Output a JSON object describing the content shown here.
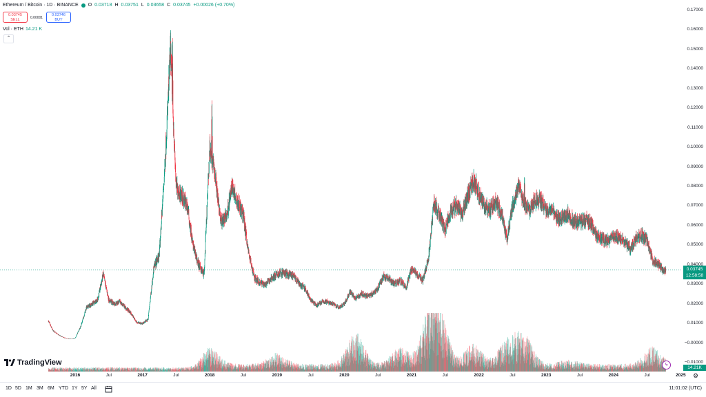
{
  "legend": {
    "symbol": "Ethereum / Bitcoin · 1D · BINANCE",
    "open_label": "O",
    "open": "0.03718",
    "high_label": "H",
    "high": "0.03751",
    "low_label": "L",
    "low": "0.03658",
    "close_label": "C",
    "close": "0.03745",
    "change": "+0.00026 (+0.70%)"
  },
  "trade": {
    "sell_price": "0.03745",
    "sell_label": "SELL",
    "spread": "0.00001",
    "buy_price": "0.03746",
    "buy_label": "BUY"
  },
  "volume_legend": {
    "label": "Vol · ETH",
    "value": "14.21 K"
  },
  "price_axis": [
    "0.17000",
    "0.16000",
    "0.15000",
    "0.14000",
    "0.13000",
    "0.12000",
    "0.11000",
    "0.10000",
    "0.09000",
    "0.08000",
    "0.07000",
    "0.06000",
    "0.05000",
    "0.04000",
    "0.03000",
    "0.02000",
    "0.01000",
    "−0.00000",
    "−0.01000"
  ],
  "price_badge": {
    "price": "0.03745",
    "countdown": "12:58:58"
  },
  "volume_badge": "14.21K",
  "time_axis": [
    {
      "label": "2016",
      "year": true
    },
    {
      "label": "Jul",
      "year": false
    },
    {
      "label": "2017",
      "year": true
    },
    {
      "label": "Jul",
      "year": false
    },
    {
      "label": "2018",
      "year": true
    },
    {
      "label": "Jul",
      "year": false
    },
    {
      "label": "2019",
      "year": true
    },
    {
      "label": "Jul",
      "year": false
    },
    {
      "label": "2020",
      "year": true
    },
    {
      "label": "Jul",
      "year": false
    },
    {
      "label": "2021",
      "year": true
    },
    {
      "label": "Jul",
      "year": false
    },
    {
      "label": "2022",
      "year": true
    },
    {
      "label": "Jul",
      "year": false
    },
    {
      "label": "2023",
      "year": true
    },
    {
      "label": "Jul",
      "year": false
    },
    {
      "label": "2024",
      "year": true
    },
    {
      "label": "Jul",
      "year": false
    },
    {
      "label": "2025",
      "year": true
    }
  ],
  "timeframes": [
    "1D",
    "5D",
    "1M",
    "3M",
    "6M",
    "YTD",
    "1Y",
    "5Y",
    "All"
  ],
  "time_readout": "11:01:02 (UTC)",
  "logo_text": "TradingView",
  "icons": {
    "calendar": "calendar-icon",
    "gear": "gear-icon",
    "bolt": "bolt-icon",
    "collapse": "chevron-up-icon"
  },
  "colors": {
    "up": "#089981",
    "down": "#f23645",
    "accent": "#2962ff"
  },
  "chart_data": {
    "type": "candlestick",
    "x_start": "2015-08",
    "x_end": "2024-10",
    "ylim": [
      -0.01,
      0.17
    ],
    "close_path": [
      [
        "2015-08-08",
        0.0112
      ],
      [
        "2015-09",
        0.0065
      ],
      [
        "2015-10",
        0.0042
      ],
      [
        "2015-11",
        0.0027
      ],
      [
        "2015-12",
        0.0021
      ],
      [
        "2016-01",
        0.0025
      ],
      [
        "2016-02",
        0.0085
      ],
      [
        "2016-03",
        0.018
      ],
      [
        "2016-04",
        0.02
      ],
      [
        "2016-05",
        0.022
      ],
      [
        "2016-06",
        0.035
      ],
      [
        "2016-07",
        0.022
      ],
      [
        "2016-08",
        0.02
      ],
      [
        "2016-09",
        0.021
      ],
      [
        "2016-10",
        0.018
      ],
      [
        "2016-11",
        0.015
      ],
      [
        "2016-12",
        0.0105
      ],
      [
        "2017-01",
        0.01
      ],
      [
        "2017-02",
        0.012
      ],
      [
        "2017-03",
        0.038
      ],
      [
        "2017-04",
        0.045
      ],
      [
        "2017-05",
        0.09
      ],
      [
        "2017-06",
        0.15
      ],
      [
        "2017-07",
        0.08
      ],
      [
        "2017-08",
        0.075
      ],
      [
        "2017-09",
        0.07
      ],
      [
        "2017-10",
        0.05
      ],
      [
        "2017-11",
        0.04
      ],
      [
        "2017-12",
        0.035
      ],
      [
        "2018-01",
        0.1
      ],
      [
        "2018-02",
        0.085
      ],
      [
        "2018-03",
        0.062
      ],
      [
        "2018-04",
        0.065
      ],
      [
        "2018-05",
        0.08
      ],
      [
        "2018-06",
        0.072
      ],
      [
        "2018-07",
        0.065
      ],
      [
        "2018-08",
        0.045
      ],
      [
        "2018-09",
        0.033
      ],
      [
        "2018-10",
        0.031
      ],
      [
        "2018-11",
        0.03
      ],
      [
        "2018-12",
        0.033
      ],
      [
        "2019-01",
        0.035
      ],
      [
        "2019-02",
        0.036
      ],
      [
        "2019-03",
        0.035
      ],
      [
        "2019-04",
        0.034
      ],
      [
        "2019-05",
        0.03
      ],
      [
        "2019-06",
        0.028
      ],
      [
        "2019-07",
        0.022
      ],
      [
        "2019-08",
        0.019
      ],
      [
        "2019-09",
        0.021
      ],
      [
        "2019-10",
        0.021
      ],
      [
        "2019-11",
        0.02
      ],
      [
        "2019-12",
        0.018
      ],
      [
        "2020-01",
        0.02
      ],
      [
        "2020-02",
        0.026
      ],
      [
        "2020-03",
        0.023
      ],
      [
        "2020-04",
        0.025
      ],
      [
        "2020-05",
        0.024
      ],
      [
        "2020-06",
        0.025
      ],
      [
        "2020-07",
        0.028
      ],
      [
        "2020-08",
        0.034
      ],
      [
        "2020-09",
        0.033
      ],
      [
        "2020-10",
        0.03
      ],
      [
        "2020-11",
        0.032
      ],
      [
        "2020-12",
        0.028
      ],
      [
        "2021-01",
        0.038
      ],
      [
        "2021-02",
        0.035
      ],
      [
        "2021-03",
        0.032
      ],
      [
        "2021-04",
        0.043
      ],
      [
        "2021-05",
        0.072
      ],
      [
        "2021-06",
        0.065
      ],
      [
        "2021-07",
        0.058
      ],
      [
        "2021-08",
        0.068
      ],
      [
        "2021-09",
        0.07
      ],
      [
        "2021-10",
        0.066
      ],
      [
        "2021-11",
        0.075
      ],
      [
        "2021-12",
        0.083
      ],
      [
        "2022-01",
        0.076
      ],
      [
        "2022-02",
        0.07
      ],
      [
        "2022-03",
        0.068
      ],
      [
        "2022-04",
        0.072
      ],
      [
        "2022-05",
        0.066
      ],
      [
        "2022-06",
        0.053
      ],
      [
        "2022-07",
        0.07
      ],
      [
        "2022-08",
        0.08
      ],
      [
        "2022-09",
        0.072
      ],
      [
        "2022-10",
        0.068
      ],
      [
        "2022-11",
        0.073
      ],
      [
        "2022-12",
        0.073
      ],
      [
        "2023-01",
        0.068
      ],
      [
        "2023-02",
        0.068
      ],
      [
        "2023-03",
        0.064
      ],
      [
        "2023-04",
        0.064
      ],
      [
        "2023-05",
        0.066
      ],
      [
        "2023-06",
        0.062
      ],
      [
        "2023-07",
        0.062
      ],
      [
        "2023-08",
        0.063
      ],
      [
        "2023-09",
        0.061
      ],
      [
        "2023-10",
        0.055
      ],
      [
        "2023-11",
        0.053
      ],
      [
        "2023-12",
        0.052
      ],
      [
        "2024-01",
        0.055
      ],
      [
        "2024-02",
        0.054
      ],
      [
        "2024-03",
        0.052
      ],
      [
        "2024-04",
        0.048
      ],
      [
        "2024-05",
        0.053
      ],
      [
        "2024-06",
        0.055
      ],
      [
        "2024-07",
        0.052
      ],
      [
        "2024-08",
        0.042
      ],
      [
        "2024-09",
        0.04
      ],
      [
        "2024-10",
        0.037
      ]
    ],
    "high_spikes": [
      [
        "2017-06-12",
        0.156
      ],
      [
        "2018-01-13",
        0.124
      ],
      [
        "2021-12-16",
        0.087
      ],
      [
        "2022-09-05",
        0.085
      ]
    ],
    "last": {
      "open": 0.03718,
      "high": 0.03751,
      "low": 0.03658,
      "close": 0.03745
    },
    "volume_peaks": [
      [
        "2018-01",
        0.32
      ],
      [
        "2019-01",
        0.22
      ],
      [
        "2020-03",
        0.62
      ],
      [
        "2020-11",
        0.33
      ],
      [
        "2021-04",
        0.46
      ],
      [
        "2021-05",
        0.7
      ],
      [
        "2021-06",
        0.62
      ],
      [
        "2021-12",
        0.4
      ],
      [
        "2022-06",
        0.45
      ],
      [
        "2022-09",
        0.58
      ],
      [
        "2023-05",
        0.1
      ],
      [
        "2024-08",
        0.35
      ]
    ]
  }
}
